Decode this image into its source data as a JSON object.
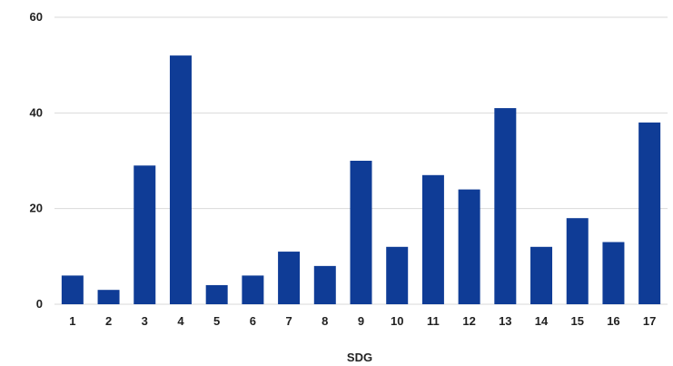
{
  "chart_data": {
    "type": "bar",
    "title": "",
    "xlabel": "SDG",
    "ylabel": "",
    "categories": [
      "1",
      "2",
      "3",
      "4",
      "5",
      "6",
      "7",
      "8",
      "9",
      "10",
      "11",
      "12",
      "13",
      "14",
      "15",
      "16",
      "17"
    ],
    "values": [
      6,
      3,
      29,
      52,
      4,
      6,
      11,
      8,
      30,
      12,
      27,
      24,
      41,
      12,
      18,
      13,
      38
    ],
    "ylim": [
      0,
      60
    ],
    "yticks": [
      "0",
      "20",
      "40",
      "60"
    ],
    "grid": true,
    "legend": "none",
    "bar_color": "#0f3c96",
    "grid_color": "#d9d9d9"
  }
}
